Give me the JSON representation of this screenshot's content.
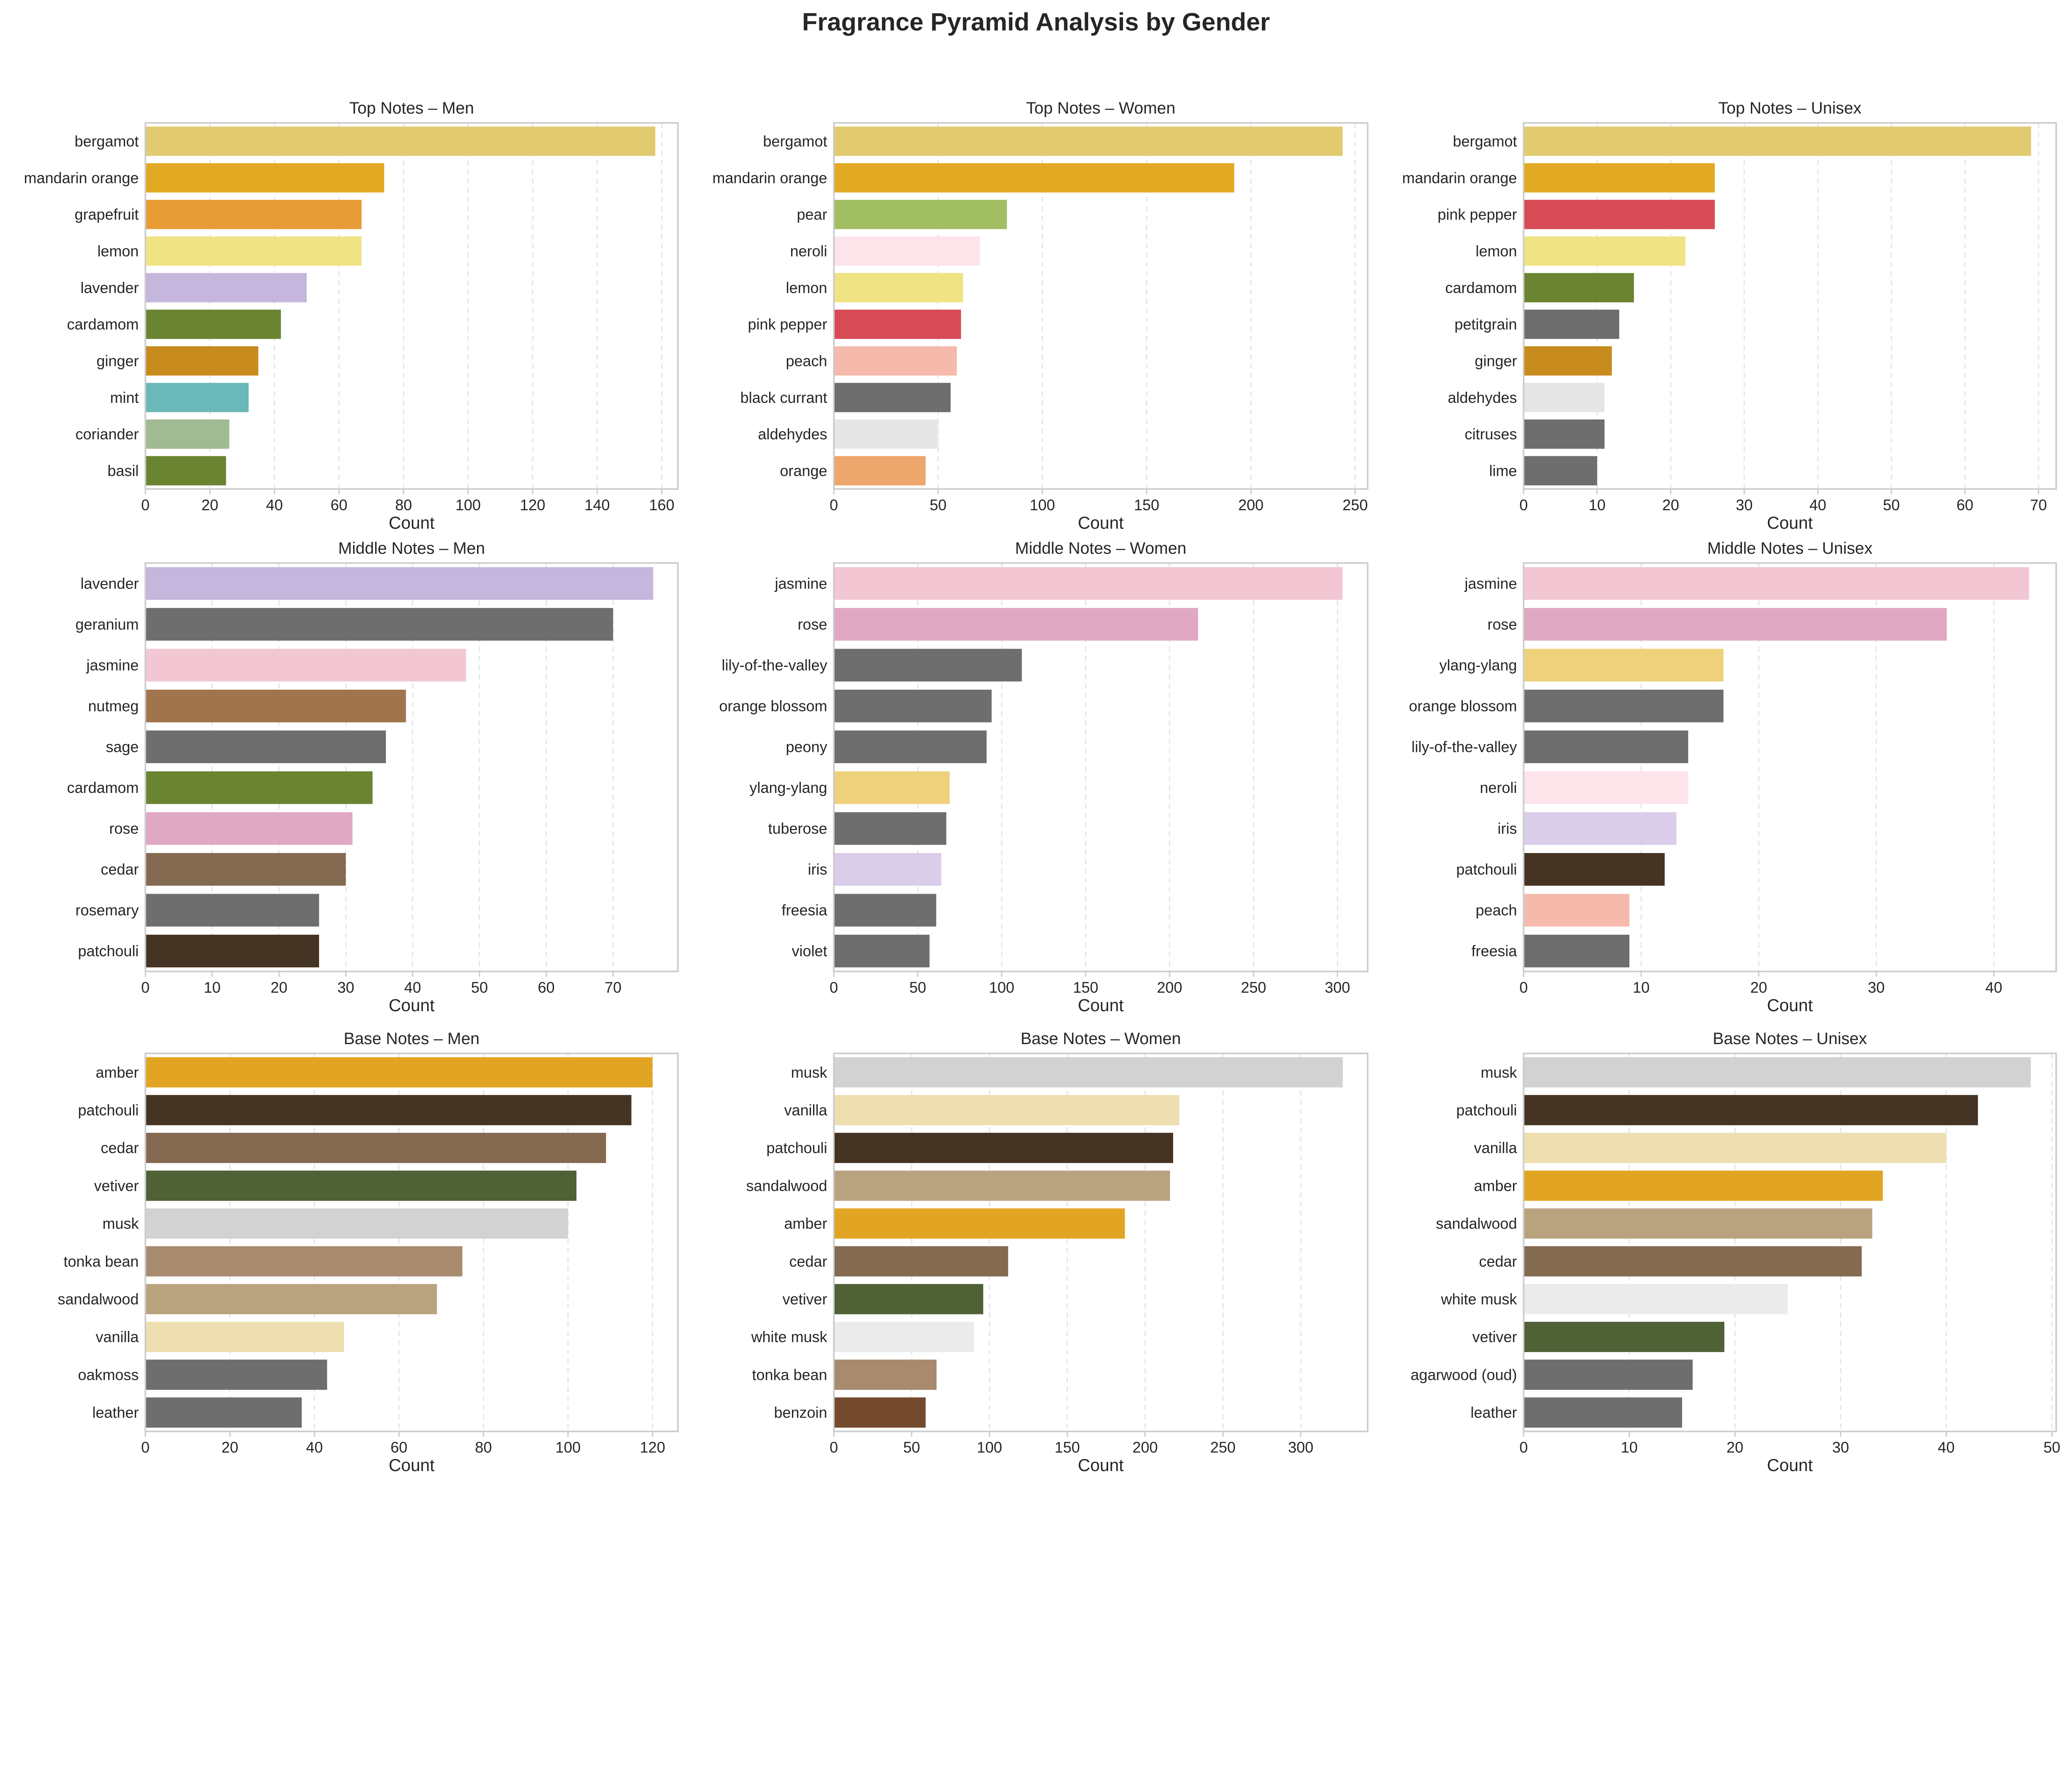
{
  "figure": {
    "title": "Fragrance Pyramid Analysis by Gender"
  },
  "chart_data": [
    {
      "type": "bar",
      "orientation": "horizontal",
      "title": "Top Notes – Men",
      "xlabel": "Count",
      "xlim": [
        0,
        165
      ],
      "xticks": [
        0,
        20,
        40,
        60,
        80,
        100,
        120,
        140,
        160
      ],
      "grid": "x dashed",
      "categories": [
        "bergamot",
        "mandarin orange",
        "grapefruit",
        "lemon",
        "lavender",
        "cardamom",
        "ginger",
        "mint",
        "coriander",
        "basil"
      ],
      "values": [
        158,
        74,
        67,
        67,
        50,
        42,
        35,
        32,
        26,
        25
      ],
      "colors": [
        "#E1CA6F",
        "#E2AA22",
        "#E89C36",
        "#F0E383",
        "#C5B6DE",
        "#6A8432",
        "#C78B1E",
        "#6BB8B8",
        "#A1BA93",
        "#6A8432"
      ]
    },
    {
      "type": "bar",
      "orientation": "horizontal",
      "title": "Top Notes – Women",
      "xlabel": "Count",
      "xlim": [
        0,
        256
      ],
      "xticks": [
        0,
        50,
        100,
        150,
        200,
        250
      ],
      "grid": "x dashed",
      "categories": [
        "bergamot",
        "mandarin orange",
        "pear",
        "neroli",
        "lemon",
        "pink pepper",
        "peach",
        "black currant",
        "aldehydes",
        "orange"
      ],
      "values": [
        244,
        192,
        83,
        70,
        62,
        61,
        59,
        56,
        50,
        44
      ],
      "colors": [
        "#E1CA6F",
        "#E2AA22",
        "#A1BE63",
        "#FDE4EA",
        "#F0E383",
        "#D64B56",
        "#F5BAAC",
        "#6E6E6E",
        "#E6E6E6",
        "#EDA66B"
      ]
    },
    {
      "type": "bar",
      "orientation": "horizontal",
      "title": "Top Notes – Unisex",
      "xlabel": "Count",
      "xlim": [
        0,
        72.4
      ],
      "xticks": [
        0,
        10,
        20,
        30,
        40,
        50,
        60,
        70
      ],
      "grid": "x dashed",
      "categories": [
        "bergamot",
        "mandarin orange",
        "pink pepper",
        "lemon",
        "cardamom",
        "petitgrain",
        "ginger",
        "aldehydes",
        "citruses",
        "lime"
      ],
      "values": [
        69,
        26,
        26,
        22,
        15,
        13,
        12,
        11,
        11,
        10
      ],
      "colors": [
        "#E1CA6F",
        "#E2AA22",
        "#D64B56",
        "#F0E383",
        "#6A8432",
        "#6E6E6E",
        "#C78B1E",
        "#E6E6E6",
        "#6E6E6E",
        "#6E6E6E"
      ]
    },
    {
      "type": "bar",
      "orientation": "horizontal",
      "title": "Middle Notes – Men",
      "xlabel": "Count",
      "xlim": [
        0,
        79.7
      ],
      "xticks": [
        0,
        10,
        20,
        30,
        40,
        50,
        60,
        70
      ],
      "grid": "x dashed",
      "categories": [
        "lavender",
        "geranium",
        "jasmine",
        "nutmeg",
        "sage",
        "cardamom",
        "rose",
        "cedar",
        "rosemary",
        "patchouli"
      ],
      "values": [
        76,
        70,
        48,
        39,
        36,
        34,
        31,
        30,
        26,
        26
      ],
      "colors": [
        "#C5B6DE",
        "#6E6E6E",
        "#F2C7D3",
        "#A0754E",
        "#6E6E6E",
        "#6A8432",
        "#E1A8C3",
        "#846A50",
        "#6E6E6E",
        "#453424"
      ]
    },
    {
      "type": "bar",
      "orientation": "horizontal",
      "title": "Middle Notes – Women",
      "xlabel": "Count",
      "xlim": [
        0,
        318
      ],
      "xticks": [
        0,
        50,
        100,
        150,
        200,
        250,
        300
      ],
      "grid": "x dashed",
      "categories": [
        "jasmine",
        "rose",
        "lily-of-the-valley",
        "orange blossom",
        "peony",
        "ylang-ylang",
        "tuberose",
        "iris",
        "freesia",
        "violet"
      ],
      "values": [
        303,
        217,
        112,
        94,
        91,
        69,
        67,
        64,
        61,
        57
      ],
      "colors": [
        "#F2C7D3",
        "#E1A8C3",
        "#6E6E6E",
        "#6E6E6E",
        "#6E6E6E",
        "#EED17A",
        "#6E6E6E",
        "#D9CDEA",
        "#6E6E6E",
        "#6E6E6E"
      ]
    },
    {
      "type": "bar",
      "orientation": "horizontal",
      "title": "Middle Notes – Unisex",
      "xlabel": "Count",
      "xlim": [
        0,
        45.3
      ],
      "xticks": [
        0,
        10,
        20,
        30,
        40
      ],
      "grid": "x dashed",
      "categories": [
        "jasmine",
        "rose",
        "ylang-ylang",
        "orange blossom",
        "lily-of-the-valley",
        "neroli",
        "iris",
        "patchouli",
        "peach",
        "freesia"
      ],
      "values": [
        43,
        36,
        17,
        17,
        14,
        14,
        13,
        12,
        9,
        9
      ],
      "colors": [
        "#F2C7D3",
        "#E1A8C3",
        "#EED17A",
        "#6E6E6E",
        "#6E6E6E",
        "#FDE4EA",
        "#D9CDEA",
        "#453424",
        "#F5BAAC",
        "#6E6E6E"
      ]
    },
    {
      "type": "bar",
      "orientation": "horizontal",
      "title": "Base Notes – Men",
      "xlabel": "Count",
      "xlim": [
        0,
        126
      ],
      "xticks": [
        0,
        20,
        40,
        60,
        80,
        100,
        120
      ],
      "grid": "x dashed",
      "categories": [
        "amber",
        "patchouli",
        "cedar",
        "vetiver",
        "musk",
        "tonka bean",
        "sandalwood",
        "vanilla",
        "oakmoss",
        "leather"
      ],
      "values": [
        120,
        115,
        109,
        102,
        100,
        75,
        69,
        47,
        43,
        37
      ],
      "colors": [
        "#E2A523",
        "#453424",
        "#846A50",
        "#4F6135",
        "#D2D2D2",
        "#A88A6F",
        "#B9A37F",
        "#EEDFB0",
        "#6E6E6E",
        "#6E6E6E"
      ]
    },
    {
      "type": "bar",
      "orientation": "horizontal",
      "title": "Base Notes – Women",
      "xlabel": "Count",
      "xlim": [
        0,
        343
      ],
      "xticks": [
        0,
        50,
        100,
        150,
        200,
        250,
        300
      ],
      "grid": "x dashed",
      "categories": [
        "musk",
        "vanilla",
        "patchouli",
        "sandalwood",
        "amber",
        "cedar",
        "vetiver",
        "white musk",
        "tonka bean",
        "benzoin"
      ],
      "values": [
        327,
        222,
        218,
        216,
        187,
        112,
        96,
        90,
        66,
        59
      ],
      "colors": [
        "#D2D2D2",
        "#EEDFB0",
        "#453424",
        "#B9A37F",
        "#E2A523",
        "#846A50",
        "#4F6135",
        "#EBEBEB",
        "#A88A6F",
        "#744A2F"
      ]
    },
    {
      "type": "bar",
      "orientation": "horizontal",
      "title": "Base Notes – Unisex",
      "xlabel": "Count",
      "xlim": [
        0,
        50.4
      ],
      "xticks": [
        0,
        10,
        20,
        30,
        40,
        50
      ],
      "grid": "x dashed",
      "categories": [
        "musk",
        "patchouli",
        "vanilla",
        "amber",
        "sandalwood",
        "cedar",
        "white musk",
        "vetiver",
        "agarwood (oud)",
        "leather"
      ],
      "values": [
        48,
        43,
        40,
        34,
        33,
        32,
        25,
        19,
        16,
        15
      ],
      "colors": [
        "#D2D2D2",
        "#453424",
        "#EEDFB0",
        "#E2A523",
        "#B9A37F",
        "#846A50",
        "#EBEBEB",
        "#4F6135",
        "#6E6E6E",
        "#6E6E6E"
      ]
    }
  ]
}
